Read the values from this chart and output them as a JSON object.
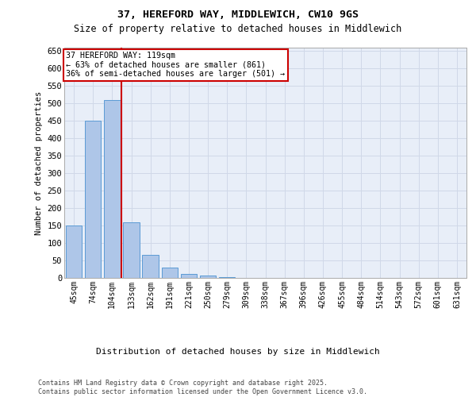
{
  "title_line1": "37, HEREFORD WAY, MIDDLEWICH, CW10 9GS",
  "title_line2": "Size of property relative to detached houses in Middlewich",
  "xlabel": "Distribution of detached houses by size in Middlewich",
  "ylabel": "Number of detached properties",
  "categories": [
    "45sqm",
    "74sqm",
    "104sqm",
    "133sqm",
    "162sqm",
    "191sqm",
    "221sqm",
    "250sqm",
    "279sqm",
    "309sqm",
    "338sqm",
    "367sqm",
    "396sqm",
    "426sqm",
    "455sqm",
    "484sqm",
    "514sqm",
    "543sqm",
    "572sqm",
    "601sqm",
    "631sqm"
  ],
  "values": [
    150,
    450,
    510,
    160,
    67,
    30,
    12,
    6,
    2,
    0,
    0,
    0,
    0,
    0,
    0,
    0,
    0,
    0,
    0,
    0,
    0
  ],
  "bar_color": "#aec6e8",
  "bar_edge_color": "#5b9bd5",
  "grid_color": "#d0d8e8",
  "background_color": "#e8eef8",
  "vline_x": 2.5,
  "vline_color": "#cc0000",
  "annotation_text": "37 HEREFORD WAY: 119sqm\n← 63% of detached houses are smaller (861)\n36% of semi-detached houses are larger (501) →",
  "annotation_box_color": "#ffffff",
  "annotation_box_edge": "#cc0000",
  "ylim": [
    0,
    660
  ],
  "yticks": [
    0,
    50,
    100,
    150,
    200,
    250,
    300,
    350,
    400,
    450,
    500,
    550,
    600,
    650
  ],
  "footer_line1": "Contains HM Land Registry data © Crown copyright and database right 2025.",
  "footer_line2": "Contains public sector information licensed under the Open Government Licence v3.0."
}
